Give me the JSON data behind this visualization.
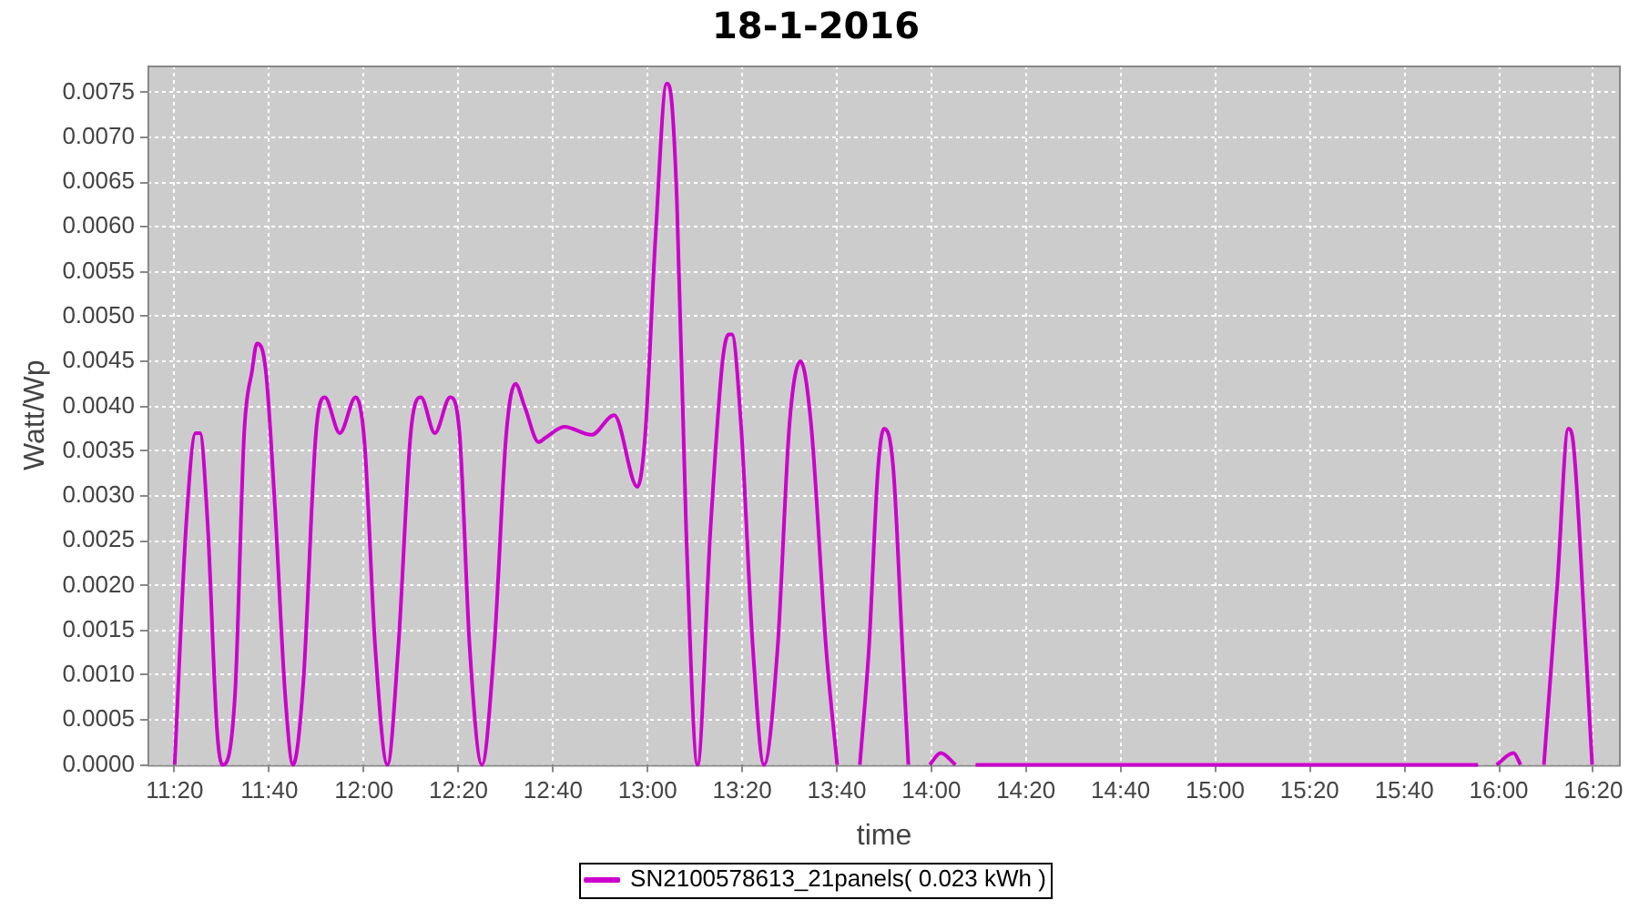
{
  "chart_data": {
    "type": "line",
    "title": "18-1-2016",
    "xlabel": "time",
    "ylabel": "Watt/Wp",
    "x": [
      11.333,
      11.374,
      11.407,
      11.422,
      11.449,
      11.482,
      11.501,
      11.546,
      11.578,
      11.606,
      11.623,
      11.654,
      11.686,
      11.722,
      11.75,
      11.786,
      11.831,
      11.862,
      11.915,
      11.971,
      12.002,
      12.04,
      12.083,
      12.121,
      12.165,
      12.201,
      12.25,
      12.304,
      12.337,
      12.373,
      12.416,
      12.459,
      12.502,
      12.534,
      12.566,
      12.616,
      12.641,
      12.706,
      12.802,
      12.882,
      12.964,
      12.991,
      13.028,
      13.067,
      13.081,
      13.103,
      13.136,
      13.176,
      13.221,
      13.264,
      13.286,
      13.297,
      13.329,
      13.371,
      13.41,
      13.458,
      13.5,
      13.539,
      13.576,
      13.629,
      13.668,
      13.704,
      13.748,
      13.78,
      13.812,
      13.833,
      13.866,
      13.898,
      13.919,
      13.956,
      13.994,
      14.033,
      14.085,
      14.123,
      14.156,
      15.927,
      15.96,
      15.992,
      16.052,
      16.077,
      16.121,
      16.159,
      16.206,
      16.245,
      16.26,
      16.303,
      16.329
    ],
    "series": [
      {
        "name": "SN2100578613_21panels( 0.023 kWh )",
        "color": "#cc00cc",
        "values": [
          0,
          0.0027,
          0.0037,
          0.0037,
          0.0027,
          0.0004,
          0,
          0.0008,
          0.0037,
          0.0044,
          0.0047,
          0.0044,
          0.0029,
          0.0008,
          0,
          0.0009,
          0.0037,
          0.0041,
          0.0037,
          0.0041,
          0.0036,
          0.0013,
          0,
          0.0013,
          0.0037,
          0.0041,
          0.0037,
          0.0041,
          0.0037,
          0.0013,
          0,
          0.0013,
          0.0037,
          0.00425,
          0.004,
          0.0036,
          0.00365,
          0.00377,
          0.00368,
          0.0039,
          0.0031,
          0.00366,
          0.0059,
          0.0076,
          0.0075,
          0.0063,
          0.0026,
          0,
          0.0026,
          0.0045,
          0.0048,
          0.0048,
          0.0038,
          0.0013,
          0,
          0.0013,
          0.0038,
          0.0045,
          0.0038,
          0.0013,
          0,
          null,
          0,
          0.0013,
          0.0033,
          0.00375,
          0.0033,
          0.0013,
          0,
          null,
          0,
          0.00013,
          0,
          null,
          0,
          0,
          null,
          0,
          0.00013,
          0,
          null,
          0,
          0.002,
          0.00375,
          0.00365,
          0.0015,
          0
        ]
      }
    ],
    "xlim": [
      11.237,
      16.43
    ],
    "xticks": [
      {
        "value": 11.3333,
        "label": "11:20"
      },
      {
        "value": 11.6667,
        "label": "11:40"
      },
      {
        "value": 12,
        "label": "12:00"
      },
      {
        "value": 12.3333,
        "label": "12:20"
      },
      {
        "value": 12.6667,
        "label": "12:40"
      },
      {
        "value": 13,
        "label": "13:00"
      },
      {
        "value": 13.3333,
        "label": "13:20"
      },
      {
        "value": 13.6667,
        "label": "13:40"
      },
      {
        "value": 14,
        "label": "14:00"
      },
      {
        "value": 14.3333,
        "label": "14:20"
      },
      {
        "value": 14.6667,
        "label": "14:40"
      },
      {
        "value": 15,
        "label": "15:00"
      },
      {
        "value": 15.3333,
        "label": "15:20"
      },
      {
        "value": 15.6667,
        "label": "15:40"
      },
      {
        "value": 16,
        "label": "16:00"
      },
      {
        "value": 16.3333,
        "label": "16:20"
      }
    ],
    "ylim": [
      0,
      0.0078
    ],
    "yticks": [
      {
        "value": 0,
        "label": "0.0000"
      },
      {
        "value": 0.0005,
        "label": "0.0005"
      },
      {
        "value": 0.001,
        "label": "0.0010"
      },
      {
        "value": 0.0015,
        "label": "0.0015"
      },
      {
        "value": 0.002,
        "label": "0.0020"
      },
      {
        "value": 0.0025,
        "label": "0.0025"
      },
      {
        "value": 0.003,
        "label": "0.0030"
      },
      {
        "value": 0.0035,
        "label": "0.0035"
      },
      {
        "value": 0.004,
        "label": "0.0040"
      },
      {
        "value": 0.0045,
        "label": "0.0045"
      },
      {
        "value": 0.005,
        "label": "0.0050"
      },
      {
        "value": 0.0055,
        "label": "0.0055"
      },
      {
        "value": 0.006,
        "label": "0.0060"
      },
      {
        "value": 0.0065,
        "label": "0.0065"
      },
      {
        "value": 0.007,
        "label": "0.0070"
      },
      {
        "value": 0.0075,
        "label": "0.0075"
      }
    ],
    "grid": true,
    "legend": "bottom",
    "marker": "none"
  }
}
